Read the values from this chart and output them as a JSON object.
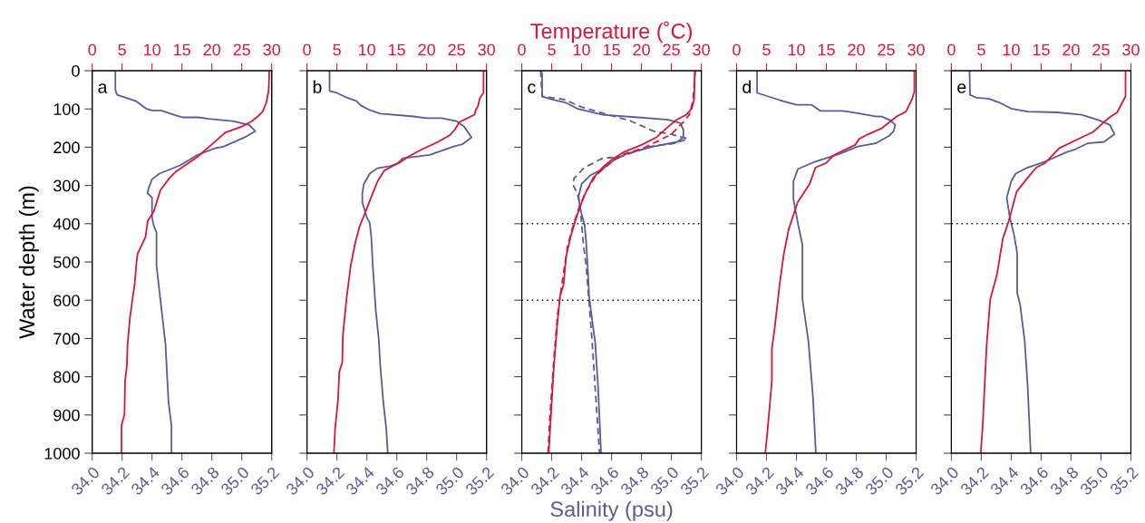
{
  "chart_data": [
    {
      "type": "line",
      "ylabel": "Water depth (m)",
      "annotations": [
        "a"
      ],
      "ylim": [
        1000,
        0
      ],
      "yticks": [
        0,
        100,
        200,
        300,
        400,
        500,
        600,
        700,
        800,
        900,
        1000
      ],
      "xlim": [
        34.0,
        35.2
      ],
      "xticks": [
        {
          "value": 34.0,
          "label": "34.0"
        },
        {
          "value": 34.2,
          "label": "34.2"
        },
        {
          "value": 34.4,
          "label": "34.4"
        },
        {
          "value": 34.6,
          "label": "34.6"
        },
        {
          "value": 34.8,
          "label": "34.8"
        },
        {
          "value": 35.0,
          "label": "35.0"
        },
        {
          "value": 35.2,
          "label": "35.2"
        }
      ],
      "x2lim": [
        0,
        30
      ],
      "x2ticks": [
        0,
        5,
        10,
        15,
        20,
        25,
        30
      ],
      "series": [
        {
          "color": "#5b5c96",
          "line_style": "solid",
          "x": [
            34.155,
            34.155,
            34.167,
            34.29,
            34.36,
            34.4,
            34.46,
            34.575,
            34.605,
            34.71,
            34.78,
            34.94,
            35.05,
            35.09,
            35.02,
            34.88,
            34.82,
            34.7,
            34.59,
            34.45,
            34.4,
            34.38,
            34.37,
            34.4,
            34.4,
            34.41,
            34.43,
            34.43,
            34.46,
            34.49,
            34.51,
            34.53,
            34.53
          ],
          "values": [
            0,
            51,
            63,
            79,
            99,
            104,
            104,
            119,
            122,
            122,
            126,
            132,
            142,
            158,
            174,
            198,
            203,
            221,
            247,
            269,
            284,
            304,
            320,
            332,
            383,
            403,
            423,
            510,
            612,
            715,
            865,
            928,
            1000
          ]
        },
        {
          "color": "#d7163c",
          "line_style": "solid",
          "axis": "x2",
          "x": [
            29.6,
            29.5,
            29.1,
            28.5,
            27.7,
            26.5,
            25.0,
            22.2,
            19.9,
            17.6,
            13.9,
            12.9,
            11.4,
            10.3,
            9.3,
            8.9,
            8.3,
            7.6,
            7.4,
            7.1,
            6.6,
            6.3,
            6.0,
            5.9,
            5.8,
            5.5,
            5.4,
            4.9,
            4.9
          ],
          "values": [
            0,
            51,
            83,
            107,
            119,
            134,
            146,
            162,
            194,
            225,
            265,
            281,
            312,
            368,
            392,
            435,
            455,
            478,
            502,
            558,
            612,
            648,
            700,
            720,
            771,
            811,
            898,
            928,
            1000
          ]
        }
      ]
    },
    {
      "type": "line",
      "annotations": [
        "b"
      ],
      "tick_labels": "x",
      "ylim": [
        1000,
        0
      ],
      "yticks": [
        0,
        100,
        200,
        300,
        400,
        500,
        600,
        700,
        800,
        900,
        1000
      ],
      "xlim": [
        34.0,
        35.2
      ],
      "xticks": [
        {
          "value": 34.0,
          "label": "34.0"
        },
        {
          "value": 34.2,
          "label": "34.2"
        },
        {
          "value": 34.4,
          "label": "34.4"
        },
        {
          "value": 34.6,
          "label": "34.6"
        },
        {
          "value": 34.8,
          "label": "34.8"
        },
        {
          "value": 35.0,
          "label": "35.0"
        },
        {
          "value": 35.2,
          "label": "35.2"
        }
      ],
      "x2lim": [
        0,
        30
      ],
      "x2ticks": [
        0,
        5,
        10,
        15,
        20,
        25,
        30
      ],
      "series": [
        {
          "color": "#5b5c96",
          "line_style": "solid",
          "x": [
            34.151,
            34.151,
            34.2,
            34.27,
            34.33,
            34.36,
            34.42,
            34.49,
            34.7,
            34.8,
            34.9,
            35.0,
            35.05,
            35.1,
            35.04,
            34.98,
            34.82,
            34.64,
            34.61,
            34.56,
            34.47,
            34.42,
            34.38,
            34.37,
            34.37,
            34.4,
            34.42,
            34.43,
            34.44,
            34.46,
            34.48,
            34.49,
            34.51,
            34.53,
            34.54
          ],
          "values": [
            0,
            53,
            58,
            71,
            79,
            91,
            103,
            112,
            119,
            124,
            124,
            132,
            146,
            174,
            192,
            198,
            220,
            229,
            241,
            249,
            255,
            269,
            296,
            320,
            344,
            383,
            399,
            435,
            510,
            628,
            703,
            771,
            865,
            936,
            1000
          ]
        },
        {
          "color": "#d7163c",
          "line_style": "solid",
          "axis": "x2",
          "x": [
            29.5,
            29.5,
            28.9,
            28.6,
            28.2,
            28.0,
            25.5,
            24.7,
            23.9,
            21.9,
            18.9,
            16.9,
            15.4,
            14.1,
            12.9,
            11.8,
            10.8,
            9.8,
            8.8,
            8.1,
            7.3,
            6.6,
            6.0,
            5.9,
            5.4,
            5.2,
            4.7,
            4.5
          ],
          "values": [
            0,
            58,
            71,
            91,
            103,
            115,
            134,
            154,
            168,
            186,
            208,
            225,
            241,
            251,
            261,
            289,
            328,
            368,
            407,
            447,
            510,
            597,
            692,
            763,
            787,
            858,
            936,
            1000
          ]
        }
      ]
    },
    {
      "type": "line",
      "annotations": [
        "c"
      ],
      "tick_labels": "x",
      "xlabel": "Salinity (psu)",
      "x2label": "Temperature (˚C)",
      "ylim": [
        1000,
        0
      ],
      "yticks": [
        0,
        100,
        200,
        300,
        400,
        500,
        600,
        700,
        800,
        900,
        1000
      ],
      "xlim": [
        34.0,
        35.2
      ],
      "xticks": [
        {
          "value": 34.0,
          "label": "34.0"
        },
        {
          "value": 34.2,
          "label": "34.2"
        },
        {
          "value": 34.4,
          "label": "34.4"
        },
        {
          "value": 34.6,
          "label": "34.6"
        },
        {
          "value": 34.8,
          "label": "34.8"
        },
        {
          "value": 35.0,
          "label": "35.0"
        },
        {
          "value": 35.2,
          "label": "35.2"
        }
      ],
      "x2lim": [
        0,
        30
      ],
      "x2ticks": [
        0,
        5,
        10,
        15,
        20,
        25,
        30
      ],
      "ref_lines": [
        {
          "axis": "y",
          "value": 400,
          "color": "#000000",
          "line_style": "dotted"
        },
        {
          "axis": "y",
          "value": 600,
          "color": "#000000",
          "line_style": "dotted"
        }
      ],
      "series": [
        {
          "color": "#5b5c96",
          "line_style": "solid",
          "x": [
            34.126,
            34.136,
            34.136,
            34.2,
            34.29,
            34.37,
            34.54,
            34.78,
            34.98,
            35.06,
            35.08,
            35.08,
            35.04,
            34.88,
            34.7,
            34.62,
            34.54,
            34.46,
            34.4,
            34.38,
            34.39,
            34.42,
            34.43,
            34.44,
            34.45,
            34.47,
            34.49,
            34.51,
            34.53
          ],
          "values": [
            0,
            8,
            67,
            75,
            83,
            99,
            115,
            122,
            128,
            137,
            154,
            174,
            186,
            198,
            217,
            233,
            257,
            273,
            296,
            328,
            360,
            403,
            447,
            510,
            589,
            652,
            707,
            826,
            1000
          ]
        },
        {
          "color": "#5b5c96",
          "line_style": "dashed",
          "x": [
            34.126,
            34.136,
            34.28,
            34.4,
            34.64,
            34.72,
            34.88,
            35.0,
            35.11,
            35.02,
            34.86,
            34.66,
            34.54,
            34.42,
            34.35,
            34.34,
            34.37,
            34.39,
            34.41,
            34.43,
            34.45,
            34.47,
            34.49,
            34.52
          ],
          "values": [
            0,
            67,
            75,
            95,
            122,
            130,
            158,
            166,
            178,
            190,
            198,
            225,
            229,
            253,
            281,
            296,
            320,
            352,
            447,
            510,
            605,
            707,
            826,
            1000
          ]
        },
        {
          "color": "#d7163c",
          "line_style": "solid",
          "axis": "x2",
          "x": [
            28.9,
            28.8,
            28.4,
            27.5,
            25.8,
            24.5,
            22.5,
            20.0,
            17.0,
            15.0,
            13.5,
            11.9,
            10.4,
            9.3,
            8.2,
            7.4,
            7.0,
            6.4,
            5.9,
            5.3,
            4.5
          ],
          "values": [
            0,
            75,
            99,
            115,
            129,
            146,
            174,
            194,
            213,
            233,
            253,
            281,
            328,
            375,
            431,
            486,
            558,
            589,
            668,
            787,
            1000
          ]
        },
        {
          "color": "#d7163c",
          "line_style": "dashed",
          "axis": "x2",
          "x": [
            29.0,
            28.6,
            28.0,
            27.0,
            25.0,
            23.0,
            20.5,
            16.5,
            14.5,
            12.4,
            10.9,
            9.7,
            8.7,
            7.7,
            6.7,
            6.0,
            5.4,
            4.7,
            4.4
          ],
          "values": [
            0,
            79,
            115,
            134,
            166,
            182,
            201,
            221,
            245,
            273,
            312,
            352,
            399,
            455,
            558,
            636,
            747,
            905,
            1000
          ]
        }
      ]
    },
    {
      "type": "line",
      "annotations": [
        "d"
      ],
      "tick_labels": "x",
      "ylim": [
        1000,
        0
      ],
      "yticks": [
        0,
        100,
        200,
        300,
        400,
        500,
        600,
        700,
        800,
        900,
        1000
      ],
      "xlim": [
        34.0,
        35.2
      ],
      "xticks": [
        {
          "value": 34.0,
          "label": "34.0"
        },
        {
          "value": 34.2,
          "label": "34.2"
        },
        {
          "value": 34.4,
          "label": "34.4"
        },
        {
          "value": 34.6,
          "label": "34.6"
        },
        {
          "value": 34.8,
          "label": "34.8"
        },
        {
          "value": 35.0,
          "label": "35.0"
        },
        {
          "value": 35.2,
          "label": "35.2"
        }
      ],
      "x2lim": [
        0,
        30
      ],
      "x2ticks": [
        0,
        5,
        10,
        15,
        20,
        25,
        30
      ],
      "series": [
        {
          "color": "#5b5c96",
          "line_style": "solid",
          "x": [
            34.137,
            34.137,
            34.29,
            34.4,
            34.5,
            34.56,
            34.71,
            34.81,
            34.92,
            34.97,
            35.03,
            35.06,
            35.05,
            35.02,
            34.93,
            34.81,
            34.69,
            34.53,
            34.41,
            34.38,
            34.38,
            34.41,
            34.44,
            34.44,
            34.48,
            34.51,
            34.53
          ],
          "values": [
            0,
            58,
            77,
            89,
            89,
            105,
            105,
            111,
            119,
            120,
            130,
            142,
            158,
            170,
            190,
            198,
            217,
            237,
            257,
            289,
            336,
            399,
            455,
            597,
            707,
            850,
            1000
          ]
        },
        {
          "color": "#d7163c",
          "line_style": "solid",
          "axis": "x2",
          "x": [
            29.7,
            29.7,
            29.3,
            28.3,
            26.8,
            25.6,
            24.3,
            22.0,
            20.5,
            19.8,
            16.2,
            15.0,
            13.2,
            12.2,
            10.2,
            8.7,
            7.9,
            7.2,
            6.4,
            5.9,
            5.9,
            5.2,
            4.8
          ],
          "values": [
            0,
            55,
            75,
            107,
            119,
            134,
            150,
            166,
            178,
            194,
            221,
            241,
            253,
            296,
            344,
            415,
            478,
            558,
            668,
            727,
            811,
            936,
            1000
          ]
        }
      ]
    },
    {
      "type": "line",
      "annotations": [
        "e"
      ],
      "tick_labels": "x",
      "ylim": [
        1000,
        0
      ],
      "yticks": [
        0,
        100,
        200,
        300,
        400,
        500,
        600,
        700,
        800,
        900,
        1000
      ],
      "xlim": [
        34.0,
        35.2
      ],
      "xticks": [
        {
          "value": 34.0,
          "label": "34.0"
        },
        {
          "value": 34.2,
          "label": "34.2"
        },
        {
          "value": 34.4,
          "label": "34.4"
        },
        {
          "value": 34.6,
          "label": "34.6"
        },
        {
          "value": 34.8,
          "label": "34.8"
        },
        {
          "value": 35.0,
          "label": "35.0"
        },
        {
          "value": 35.2,
          "label": "35.2"
        }
      ],
      "x2lim": [
        0,
        30
      ],
      "x2ticks": [
        0,
        5,
        10,
        15,
        20,
        25,
        30
      ],
      "ref_lines": [
        {
          "axis": "y",
          "value": 400,
          "color": "#000000",
          "line_style": "dotted"
        }
      ],
      "series": [
        {
          "color": "#5b5c96",
          "line_style": "solid",
          "x": [
            34.121,
            34.125,
            34.17,
            34.25,
            34.32,
            34.4,
            34.51,
            34.71,
            34.87,
            34.99,
            35.06,
            35.09,
            35.02,
            34.91,
            34.83,
            34.77,
            34.63,
            34.51,
            34.43,
            34.4,
            34.37,
            34.39,
            34.42,
            34.44,
            34.44,
            34.46,
            34.49,
            34.51,
            34.53
          ],
          "values": [
            0,
            63,
            71,
            73,
            83,
            99,
            107,
            109,
            115,
            130,
            142,
            166,
            186,
            190,
            205,
            213,
            237,
            253,
            269,
            289,
            332,
            383,
            431,
            478,
            581,
            612,
            707,
            826,
            1000
          ]
        },
        {
          "color": "#d7163c",
          "line_style": "solid",
          "axis": "x2",
          "x": [
            29.1,
            29.1,
            27.7,
            26.7,
            25.5,
            23.7,
            20.2,
            18.0,
            15.7,
            14.2,
            12.9,
            10.9,
            9.6,
            8.6,
            7.6,
            6.5,
            5.9,
            5.2,
            4.9
          ],
          "values": [
            0,
            67,
            109,
            119,
            134,
            160,
            186,
            203,
            241,
            253,
            277,
            316,
            392,
            439,
            534,
            597,
            715,
            936,
            1000
          ]
        }
      ]
    }
  ]
}
